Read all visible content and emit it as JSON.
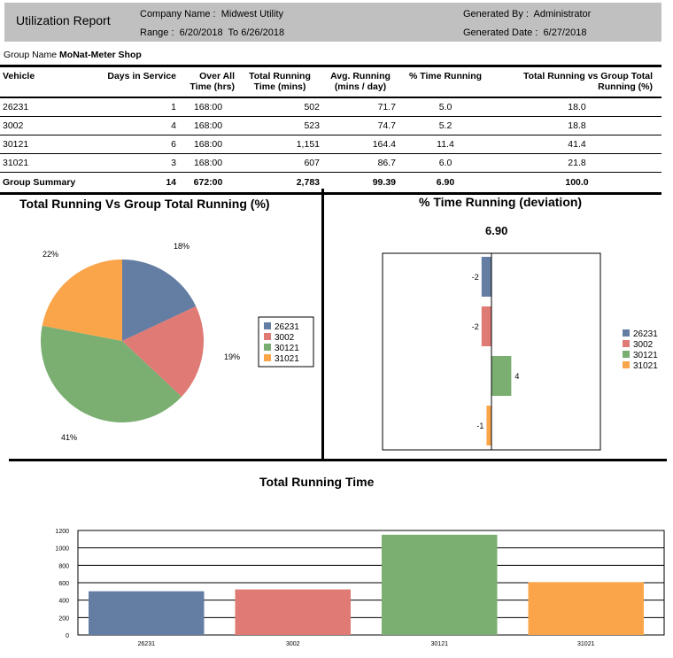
{
  "header": {
    "title": "Utilization Report",
    "company_label": "Company Name :",
    "company": "Midwest Utility",
    "range_label": "Range :",
    "range_from": "6/20/2018",
    "range_to_label": "To",
    "range_to": "6/26/2018",
    "generated_by_label": "Generated By :",
    "generated_by": "Administrator",
    "generated_date_label": "Generated Date :",
    "generated_date": "6/27/2018"
  },
  "group": {
    "label": "Group Name",
    "name": "MoNat-Meter Shop"
  },
  "table": {
    "columns": [
      "Vehicle",
      "Days in Service",
      "Over All Time (hrs)",
      "Total Running Time (mins)",
      "Avg. Running (mins / day)",
      "% Time Running",
      "Total Running vs Group Total Running (%)"
    ],
    "rows": [
      [
        "26231",
        "1",
        "168:00",
        "502",
        "71.7",
        "5.0",
        "18.0"
      ],
      [
        "3002",
        "4",
        "168:00",
        "523",
        "74.7",
        "5.2",
        "18.8"
      ],
      [
        "30121",
        "6",
        "168:00",
        "1,151",
        "164.4",
        "11.4",
        "41.4"
      ],
      [
        "31021",
        "3",
        "168:00",
        "607",
        "86.7",
        "6.0",
        "21.8"
      ]
    ],
    "summary": [
      "Group Summary",
      "14",
      "672:00",
      "2,783",
      "99.39",
      "6.90",
      "100.0"
    ]
  },
  "colors": {
    "26231": "#647ea3",
    "3002": "#df7a74",
    "30121": "#7baf72",
    "31021": "#fba54b"
  },
  "chart_data": [
    {
      "type": "pie",
      "title": "Total Running Vs Group Total Running (%)",
      "categories": [
        "26231",
        "3002",
        "30121",
        "31021"
      ],
      "values": [
        18,
        19,
        41,
        22
      ],
      "labels": [
        "18%",
        "19%",
        "41%",
        "22%"
      ],
      "legend": "right"
    },
    {
      "type": "bar",
      "orientation": "horizontal",
      "title": "% Time Running  (deviation)",
      "subtitle": "6.90",
      "categories": [
        "26231",
        "3002",
        "30121",
        "31021"
      ],
      "values": [
        -2,
        -2,
        4,
        -1
      ],
      "labels": [
        "-2",
        "-2",
        "4",
        "-1"
      ],
      "xlim": [
        -22,
        22
      ],
      "legend": "right"
    },
    {
      "type": "bar",
      "title": "Total Running Time",
      "categories": [
        "26231",
        "3002",
        "30121",
        "31021"
      ],
      "values": [
        502,
        523,
        1151,
        607
      ],
      "ylim": [
        0,
        1200
      ],
      "yticks": [
        "0",
        "200",
        "400",
        "600",
        "800",
        "1000",
        "1200"
      ],
      "grid": true
    }
  ]
}
